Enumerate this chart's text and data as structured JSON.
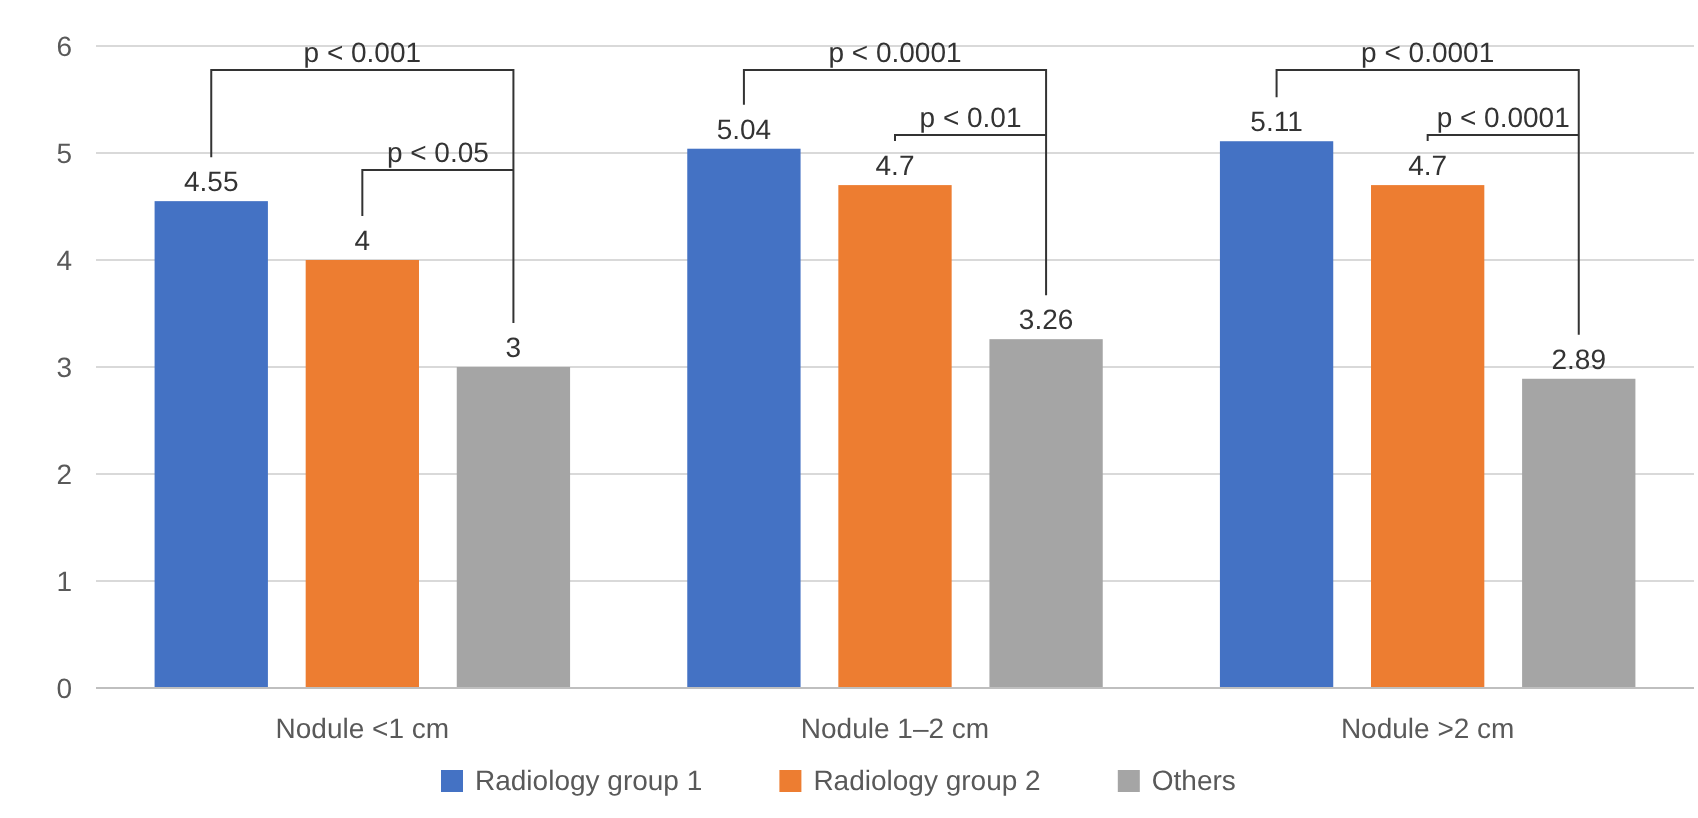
{
  "chart_data": {
    "type": "bar",
    "categories": [
      "Nodule <1 cm",
      "Nodule 1–2 cm",
      "Nodule >2 cm"
    ],
    "series": [
      {
        "name": "Radiology group 1",
        "color": "#4472c4",
        "values": [
          4.55,
          5.04,
          5.11
        ]
      },
      {
        "name": "Radiology group 2",
        "color": "#ed7d31",
        "values": [
          4,
          4.7,
          4.7
        ]
      },
      {
        "name": "Others",
        "color": "#a5a5a5",
        "values": [
          3,
          3.26,
          2.89
        ]
      }
    ],
    "ylim": [
      0,
      6
    ],
    "yticks": [
      0,
      1,
      2,
      3,
      4,
      5,
      6
    ],
    "grid": "y",
    "legend": "bottom",
    "data_labels": true,
    "annotations": [
      "p < 0.001",
      "p < 0.05",
      "p < 0.0001",
      "p < 0.01",
      "p < 0.0001",
      "p < 0.0001"
    ]
  }
}
